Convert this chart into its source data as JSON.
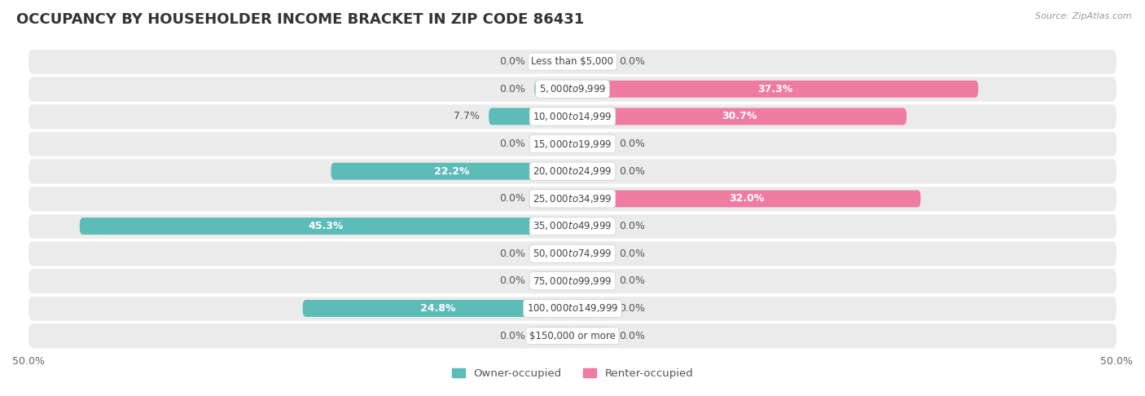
{
  "title": "OCCUPANCY BY HOUSEHOLDER INCOME BRACKET IN ZIP CODE 86431",
  "source": "Source: ZipAtlas.com",
  "categories": [
    "Less than $5,000",
    "$5,000 to $9,999",
    "$10,000 to $14,999",
    "$15,000 to $19,999",
    "$20,000 to $24,999",
    "$25,000 to $34,999",
    "$35,000 to $49,999",
    "$50,000 to $74,999",
    "$75,000 to $99,999",
    "$100,000 to $149,999",
    "$150,000 or more"
  ],
  "owner_values": [
    0.0,
    0.0,
    7.7,
    0.0,
    22.2,
    0.0,
    45.3,
    0.0,
    0.0,
    24.8,
    0.0
  ],
  "renter_values": [
    0.0,
    37.3,
    30.7,
    0.0,
    0.0,
    32.0,
    0.0,
    0.0,
    0.0,
    0.0,
    0.0
  ],
  "owner_color": "#5bbcb8",
  "renter_color": "#f07ba0",
  "owner_label": "Owner-occupied",
  "renter_label": "Renter-occupied",
  "xlim_abs": 50.0,
  "row_bg_color": "#ebebeb",
  "row_bg_light": "#f5f5f5",
  "bar_height": 0.62,
  "min_stub": 3.5,
  "title_fontsize": 13,
  "label_fontsize": 9,
  "category_fontsize": 8.5,
  "axis_fontsize": 9,
  "background_color": "#ffffff",
  "label_inside_color": "#ffffff",
  "label_outside_color": "#555555"
}
